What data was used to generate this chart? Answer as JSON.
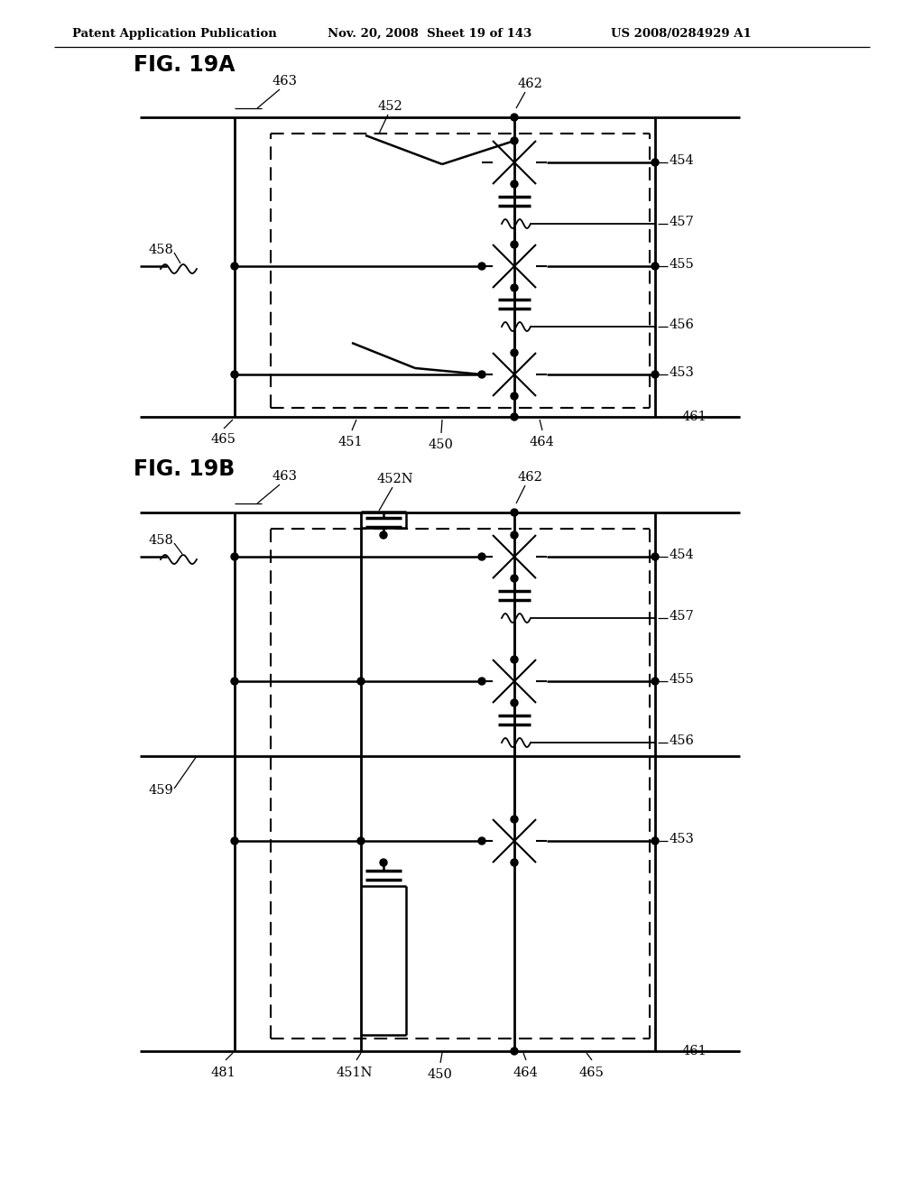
{
  "bg_color": "#ffffff",
  "header_left": "Patent Application Publication",
  "header_mid": "Nov. 20, 2008  Sheet 19 of 143",
  "header_right": "US 2008/0284929 A1",
  "fig_a": "FIG. 19A",
  "fig_b": "FIG. 19B"
}
